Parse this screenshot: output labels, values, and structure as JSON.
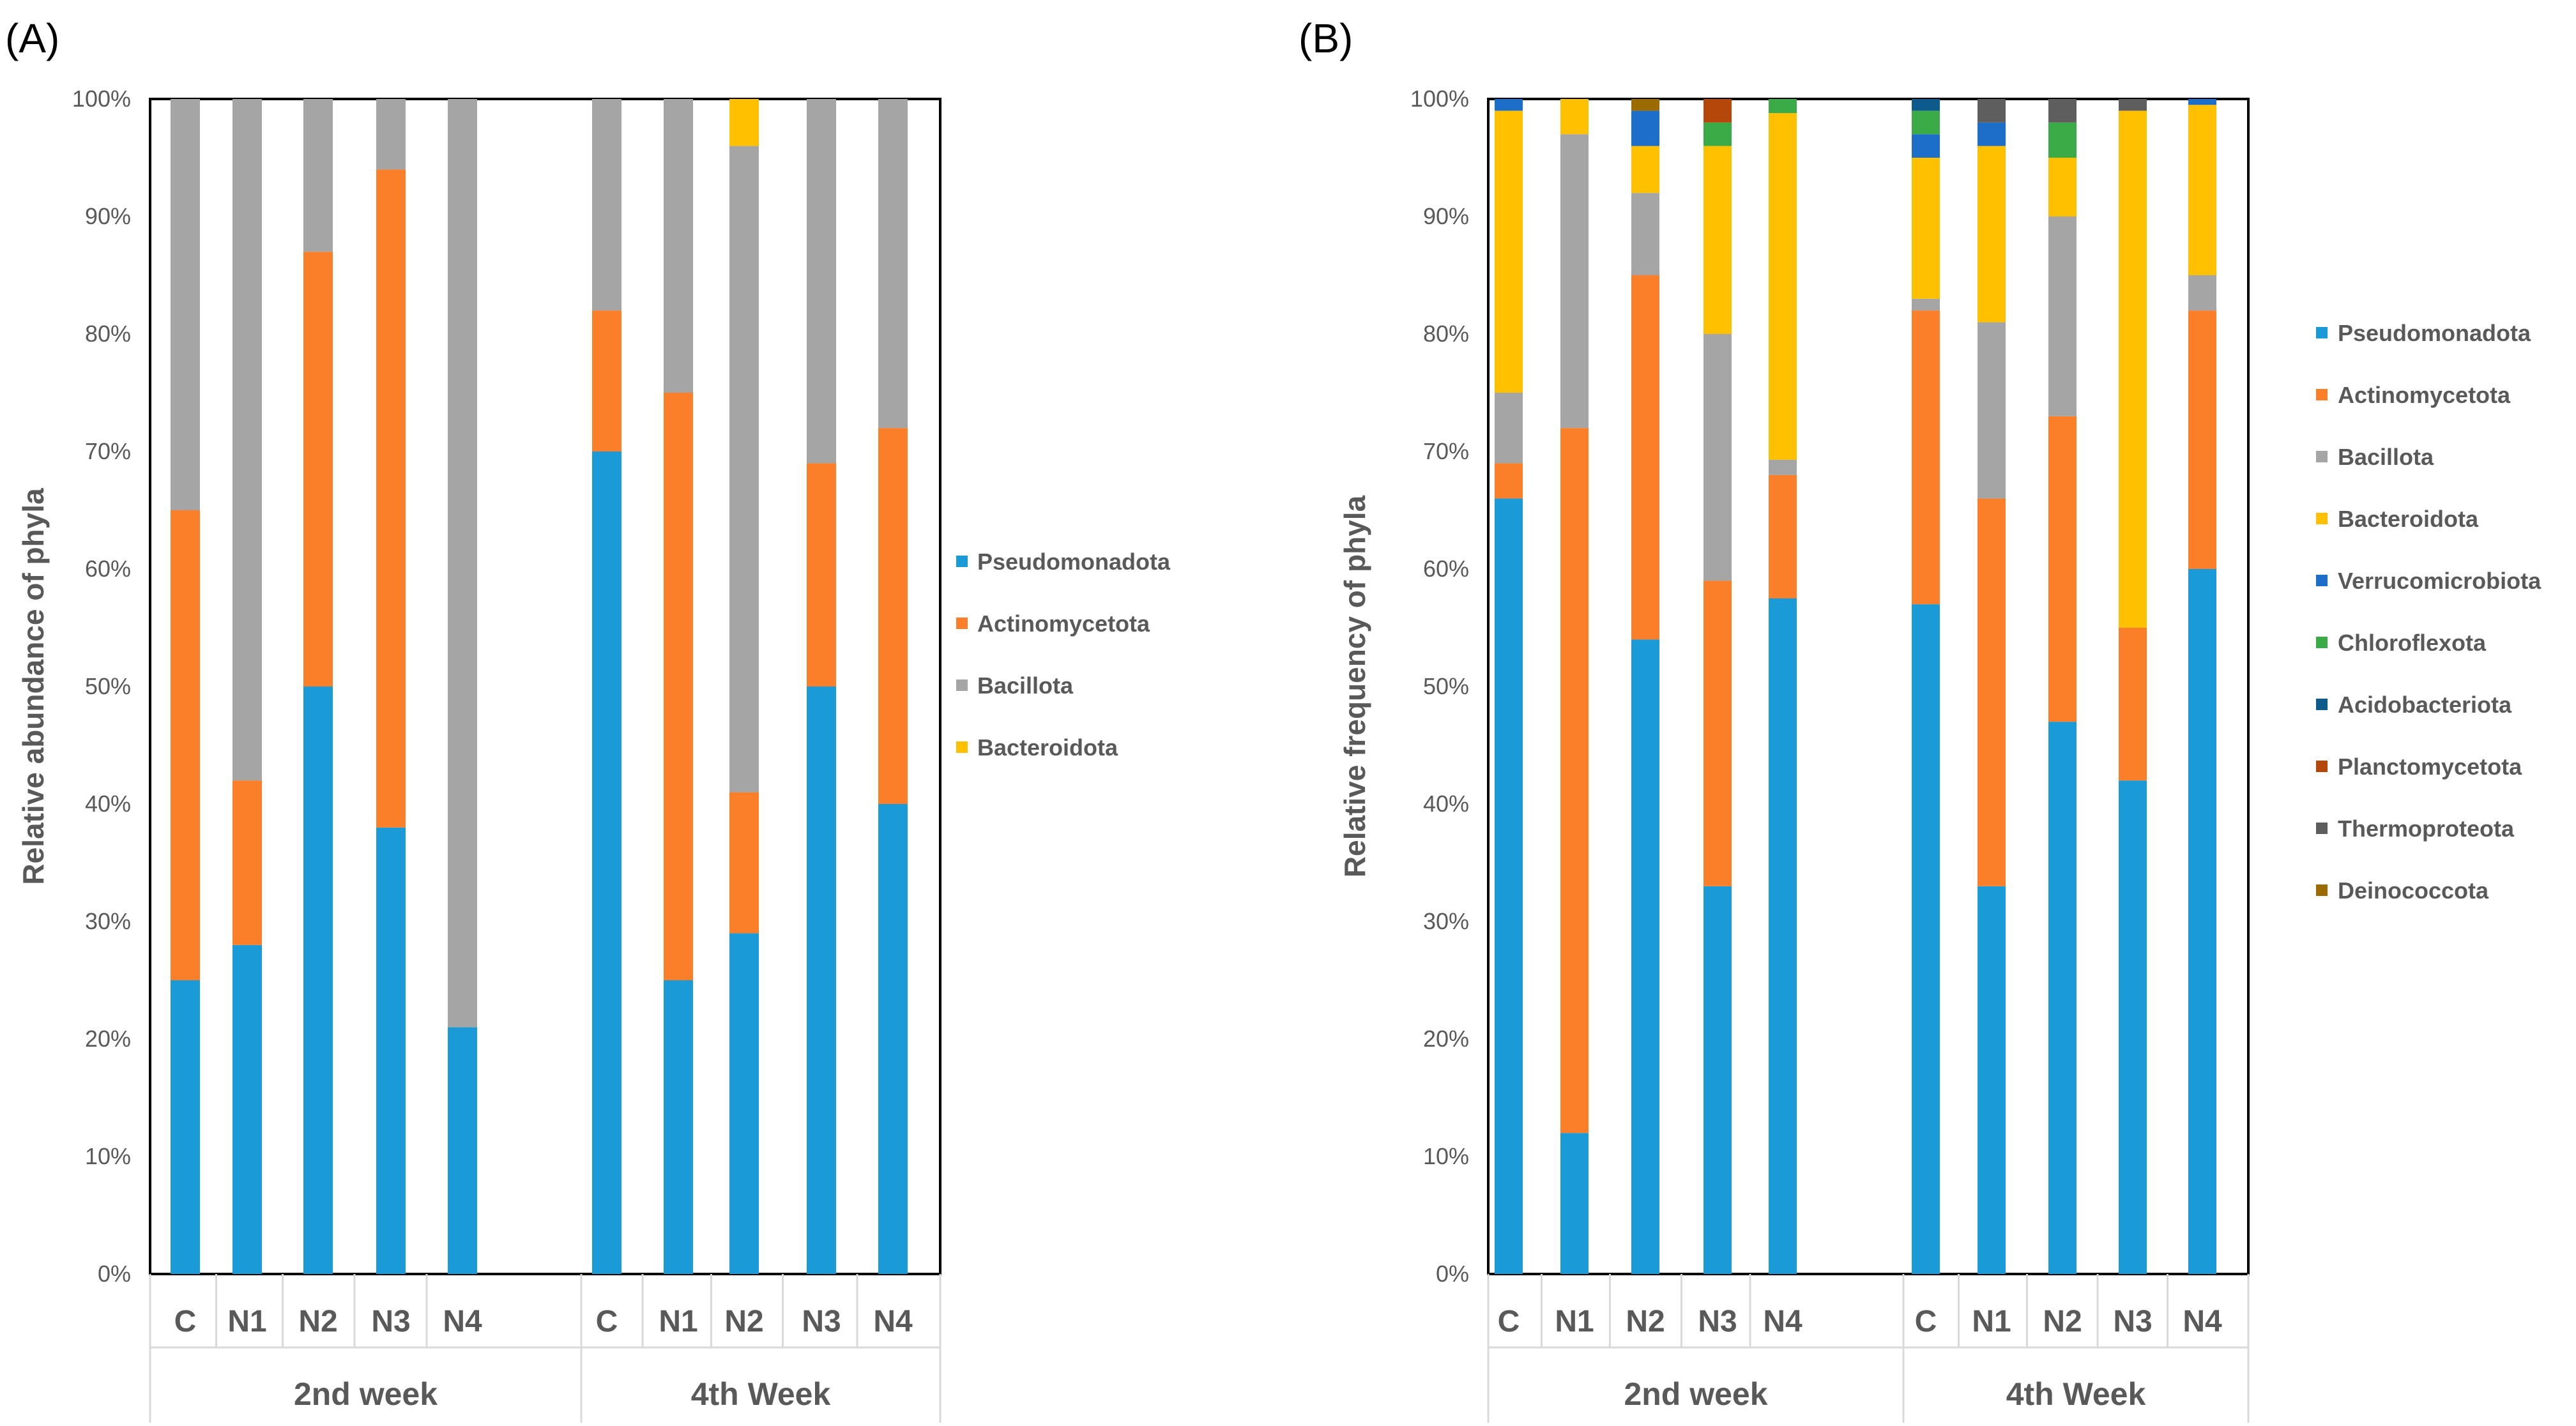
{
  "chart_data": [
    {
      "type": "bar",
      "stacked": true,
      "panel_label": "(A)",
      "ylabel": "Relative abundance of phyla",
      "ylim": [
        0,
        100
      ],
      "yticks": [
        "0%",
        "10%",
        "20%",
        "30%",
        "40%",
        "50%",
        "60%",
        "70%",
        "80%",
        "90%",
        "100%"
      ],
      "groups": [
        {
          "label": "2nd week",
          "categories": [
            "C",
            "N1",
            "N2",
            "N3",
            "N4"
          ]
        },
        {
          "label": "4th Week",
          "categories": [
            "C",
            "N1",
            "N2",
            "N3",
            "N4"
          ]
        }
      ],
      "series": [
        {
          "name": "Pseudomonadota",
          "color": "#1a9ad6",
          "values": [
            25,
            28,
            50,
            38,
            21,
            70,
            25,
            29,
            50,
            40
          ]
        },
        {
          "name": "Actinomycetota",
          "color": "#fb7e29",
          "values": [
            40,
            14,
            37,
            56,
            0,
            12,
            50,
            12,
            19,
            32
          ]
        },
        {
          "name": "Bacillota",
          "color": "#a5a5a5",
          "values": [
            35,
            58,
            13,
            6,
            79,
            18,
            25,
            55,
            31,
            28
          ]
        },
        {
          "name": "Bacteroidota",
          "color": "#ffc000",
          "values": [
            0,
            0,
            0,
            0,
            0,
            0,
            0,
            4,
            0,
            0
          ]
        }
      ],
      "legend_position": "right"
    },
    {
      "type": "bar",
      "stacked": true,
      "panel_label": "(B)",
      "ylabel": "Relative frequency of phyla",
      "ylim": [
        0,
        100
      ],
      "yticks": [
        "0%",
        "10%",
        "20%",
        "30%",
        "40%",
        "50%",
        "60%",
        "70%",
        "80%",
        "90%",
        "100%"
      ],
      "groups": [
        {
          "label": "2nd week",
          "categories": [
            "C",
            "N1",
            "N2",
            "N3",
            "N4"
          ]
        },
        {
          "label": "4th Week",
          "categories": [
            "C",
            "N1",
            "N2",
            "N3",
            "N4"
          ]
        }
      ],
      "series": [
        {
          "name": "Pseudomonadota",
          "color": "#1a9ad6",
          "values": [
            66,
            12,
            54,
            33,
            57.5,
            57,
            33,
            47,
            42,
            60
          ]
        },
        {
          "name": "Actinomycetota",
          "color": "#fb7e29",
          "values": [
            3,
            60,
            31,
            26,
            10.5,
            25,
            33,
            26,
            13,
            22
          ]
        },
        {
          "name": "Bacillota",
          "color": "#a5a5a5",
          "values": [
            6,
            25,
            7,
            21,
            1.3,
            1,
            15,
            17,
            0,
            3
          ]
        },
        {
          "name": "Bacteroidota",
          "color": "#ffc000",
          "values": [
            24,
            3,
            4,
            16,
            29.5,
            12,
            15,
            5,
            44,
            14.5
          ]
        },
        {
          "name": "Verrucomicrobiota",
          "color": "#1c6ec8",
          "values": [
            1,
            0,
            3,
            0,
            0,
            2,
            2,
            0,
            0,
            0.5
          ]
        },
        {
          "name": "Chloroflexota",
          "color": "#3aab47",
          "values": [
            0,
            0,
            0,
            2,
            1.2,
            2,
            0,
            3,
            0,
            0
          ]
        },
        {
          "name": "Acidobacteriota",
          "color": "#0d5b8c",
          "values": [
            0,
            0,
            0,
            0,
            0,
            1,
            0,
            0,
            0,
            0
          ]
        },
        {
          "name": "Planctomycetota",
          "color": "#b5470b",
          "values": [
            0,
            0,
            0,
            2,
            0,
            0,
            0,
            0,
            0,
            0
          ]
        },
        {
          "name": "Thermoproteota",
          "color": "#5e5e5e",
          "values": [
            0,
            0,
            0,
            0,
            0,
            0,
            2,
            2,
            1,
            0
          ]
        },
        {
          "name": "Deinococcota",
          "color": "#9c6b00",
          "values": [
            0,
            0,
            1,
            0,
            0,
            0,
            0,
            0,
            0,
            0
          ]
        }
      ],
      "legend_position": "right"
    }
  ]
}
